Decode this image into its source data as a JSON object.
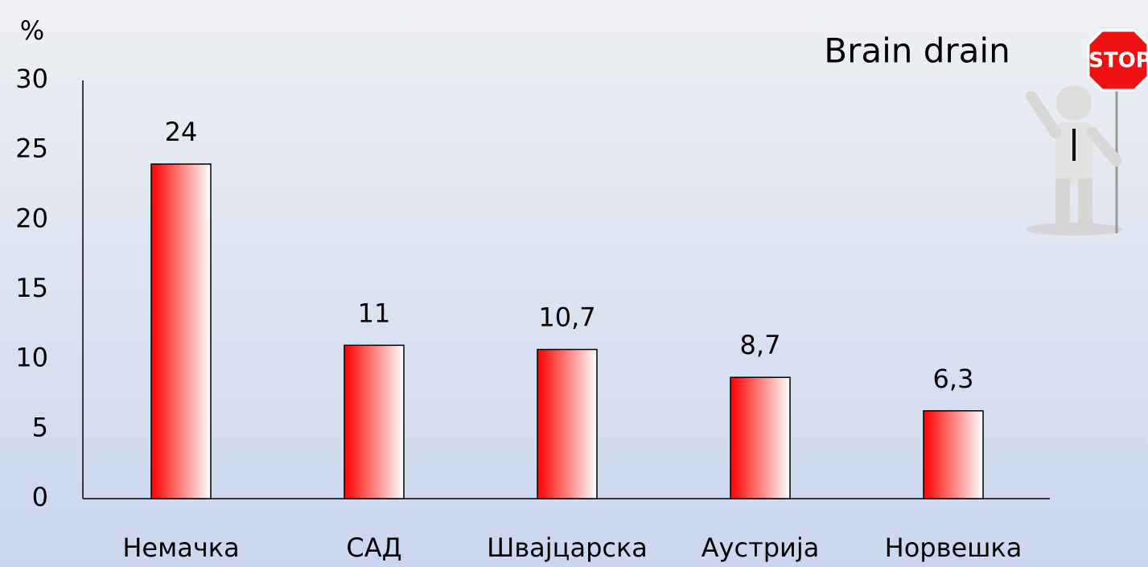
{
  "chart_data": {
    "type": "bar",
    "title": "Brain drain",
    "ylabel": "%",
    "annotation": "STOP",
    "categories": [
      "Немачка",
      "САД",
      "Швајцарска",
      "Аустрија",
      "Норвешка"
    ],
    "values": [
      24,
      11,
      10.7,
      8.7,
      6.3
    ],
    "value_labels": [
      "24",
      "11",
      "10,7",
      "8,7",
      "6,3"
    ],
    "color": "#ff0000",
    "ylim": [
      0,
      30
    ],
    "yticks": [
      0,
      5,
      10,
      15,
      20,
      25,
      30
    ],
    "grid": false
  }
}
